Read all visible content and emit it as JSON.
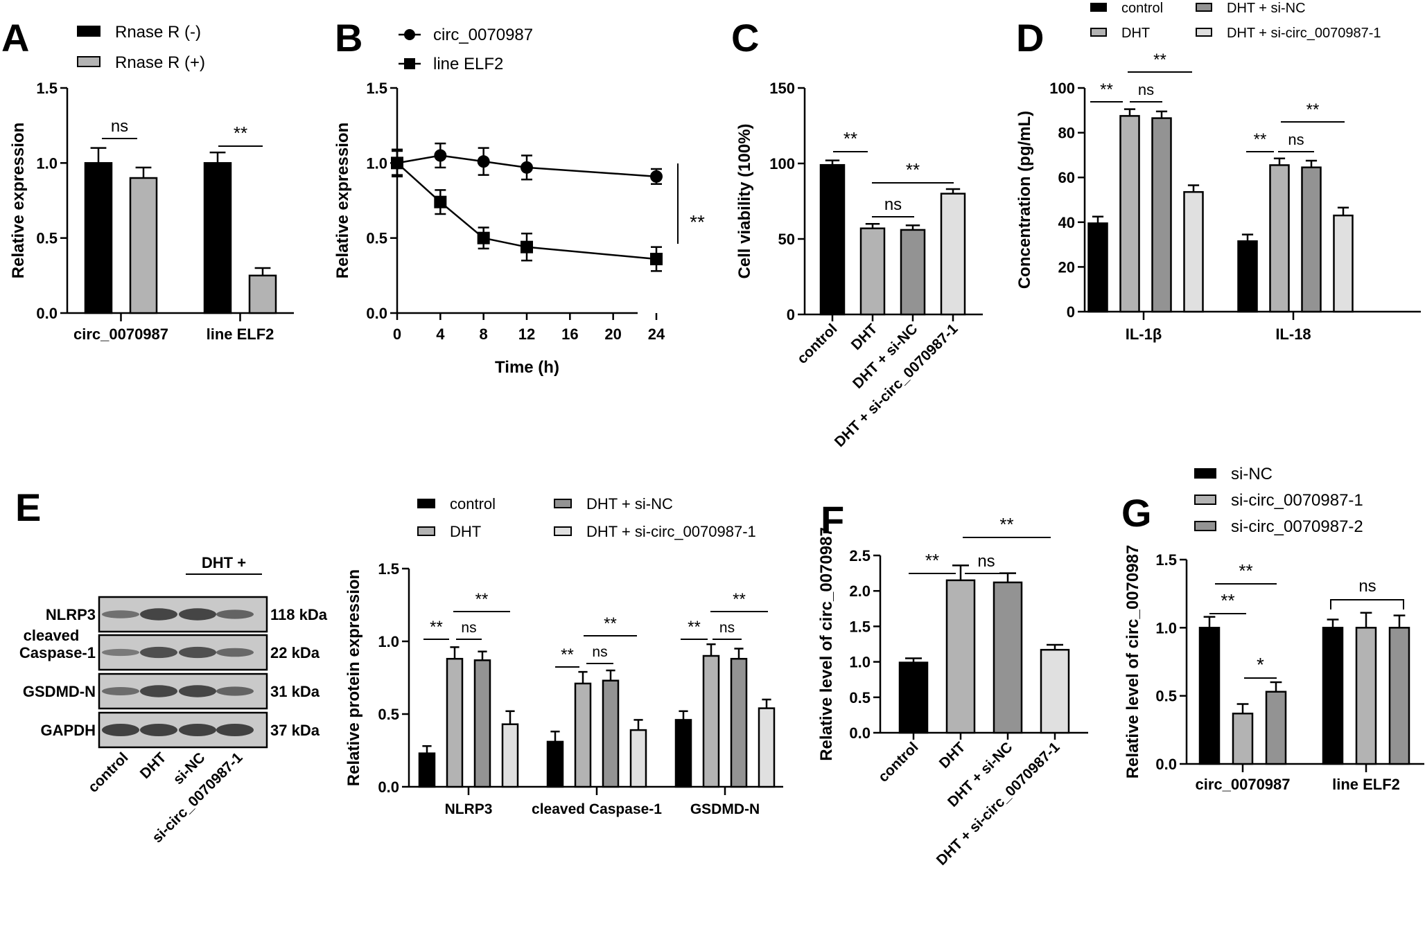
{
  "colors": {
    "control": "#000000",
    "dht": "#b3b3b3",
    "dht_sinc": "#939393",
    "dht_si1": "#e0e0e0",
    "blot_bg": "#c9c9c9",
    "band": "#3a3a3a"
  },
  "chart_data": [
    {
      "id": "A",
      "panel_label": "A",
      "type": "bar",
      "legend": [
        "Rnase R (-)",
        "Rnase R (+)"
      ],
      "categories": [
        "circ_0070987",
        "line ELF2"
      ],
      "series": [
        {
          "name": "Rnase R (-)",
          "values": [
            1.0,
            1.0
          ],
          "errors": [
            0.1,
            0.07
          ]
        },
        {
          "name": "Rnase R (+)",
          "values": [
            0.9,
            0.25
          ],
          "errors": [
            0.07,
            0.05
          ]
        }
      ],
      "ylabel": "Relative expression",
      "ylim": [
        0,
        1.5
      ],
      "yticks": [
        "0.0",
        "0.5",
        "1.0",
        "1.5"
      ],
      "annotations": [
        "ns",
        "**"
      ]
    },
    {
      "id": "B",
      "panel_label": "B",
      "type": "line",
      "legend": [
        "circ_0070987",
        "line ELF2"
      ],
      "x": [
        0,
        4,
        8,
        12,
        24
      ],
      "series": [
        {
          "name": "circ_0070987",
          "values": [
            1.0,
            1.05,
            1.01,
            0.97,
            0.91
          ],
          "errors": [
            0.09,
            0.08,
            0.09,
            0.08,
            0.05
          ]
        },
        {
          "name": "line ELF2",
          "values": [
            1.0,
            0.74,
            0.5,
            0.44,
            0.36
          ],
          "errors": [
            0.08,
            0.08,
            0.07,
            0.09,
            0.08
          ]
        }
      ],
      "xlabel": "Time (h)",
      "ylabel": "Relative expression",
      "ylim": [
        0,
        1.5
      ],
      "xlim": [
        0,
        24
      ],
      "xticks": [
        "0",
        "4",
        "8",
        "12",
        "16",
        "20",
        "24"
      ],
      "yticks": [
        "0.0",
        "0.5",
        "1.0",
        "1.5"
      ],
      "annotations": [
        "**"
      ]
    },
    {
      "id": "C",
      "panel_label": "C",
      "type": "bar",
      "categories": [
        "control",
        "DHT",
        "DHT + si-NC",
        "DHT + si-circ_0070987-1"
      ],
      "values": [
        99,
        57,
        56,
        80
      ],
      "errors": [
        3,
        3,
        3,
        3
      ],
      "ylabel": "Cell viability (100%)",
      "ylim": [
        0,
        150
      ],
      "yticks": [
        "0",
        "50",
        "100",
        "150"
      ],
      "annotations": [
        "**",
        "ns",
        "**"
      ]
    },
    {
      "id": "D",
      "panel_label": "D",
      "type": "bar",
      "legend": [
        "control",
        "DHT",
        "DHT + si-NC",
        "DHT + si-circ_0070987-1"
      ],
      "categories": [
        "IL-1β",
        "IL-18"
      ],
      "series": [
        {
          "name": "control",
          "values": [
            39.5,
            31.5
          ],
          "errors": [
            3,
            3
          ]
        },
        {
          "name": "DHT",
          "values": [
            87.5,
            65.5
          ],
          "errors": [
            3,
            3
          ]
        },
        {
          "name": "DHT + si-NC",
          "values": [
            86.5,
            64.5
          ],
          "errors": [
            3,
            3
          ]
        },
        {
          "name": "DHT + si-circ_0070987-1",
          "values": [
            53.5,
            43
          ],
          "errors": [
            3,
            3.5
          ]
        }
      ],
      "ylabel": "Concentration (pg/mL)",
      "ylim": [
        0,
        100
      ],
      "yticks": [
        "0",
        "20",
        "40",
        "60",
        "80",
        "100"
      ],
      "annotations": [
        "**",
        "ns",
        "**",
        "**",
        "ns",
        "**"
      ]
    },
    {
      "id": "E",
      "panel_label": "E",
      "type": "bar",
      "legend": [
        "control",
        "DHT",
        "DHT + si-NC",
        "DHT + si-circ_0070987-1"
      ],
      "categories": [
        "NLRP3",
        "cleaved Caspase-1",
        "GSDMD-N"
      ],
      "series": [
        {
          "name": "control",
          "values": [
            0.23,
            0.31,
            0.46
          ],
          "errors": [
            0.05,
            0.07,
            0.06
          ]
        },
        {
          "name": "DHT",
          "values": [
            0.88,
            0.71,
            0.9
          ],
          "errors": [
            0.08,
            0.08,
            0.08
          ]
        },
        {
          "name": "DHT + si-NC",
          "values": [
            0.87,
            0.73,
            0.88
          ],
          "errors": [
            0.06,
            0.07,
            0.07
          ]
        },
        {
          "name": "DHT + si-circ_0070987-1",
          "values": [
            0.43,
            0.39,
            0.54
          ],
          "errors": [
            0.09,
            0.07,
            0.06
          ]
        }
      ],
      "ylabel": "Relative protein expression",
      "ylim": [
        0,
        1.5
      ],
      "yticks": [
        "0.0",
        "0.5",
        "1.0",
        "1.5"
      ],
      "annotations": [
        "**",
        "ns",
        "**",
        "**",
        "ns",
        "**",
        "**",
        "ns",
        "**"
      ]
    },
    {
      "id": "F",
      "panel_label": "F",
      "type": "bar",
      "categories": [
        "control",
        "DHT",
        "DHT + si-NC",
        "DHT + si-circ_0070987-1"
      ],
      "values": [
        0.99,
        2.15,
        2.12,
        1.17
      ],
      "errors": [
        0.06,
        0.21,
        0.13,
        0.07
      ],
      "ylabel": "Relative level of circ_0070987",
      "ylim": [
        0,
        2.5
      ],
      "yticks": [
        "0.0",
        "0.5",
        "1.0",
        "1.5",
        "2.0",
        "2.5"
      ],
      "annotations": [
        "**",
        "ns",
        "**"
      ]
    },
    {
      "id": "G",
      "panel_label": "G",
      "type": "bar",
      "legend": [
        "si-NC",
        "si-circ_0070987-1",
        "si-circ_0070987-2"
      ],
      "categories": [
        "circ_0070987",
        "line ELF2"
      ],
      "series": [
        {
          "name": "si-NC",
          "values": [
            1.0,
            1.0
          ],
          "errors": [
            0.08,
            0.06
          ]
        },
        {
          "name": "si-circ_0070987-1",
          "values": [
            0.37,
            1.0
          ],
          "errors": [
            0.07,
            0.11
          ]
        },
        {
          "name": "si-circ_0070987-2",
          "values": [
            0.53,
            1.0
          ],
          "errors": [
            0.07,
            0.09
          ]
        }
      ],
      "ylabel": "Relative level of circ_0070987",
      "ylim": [
        0,
        1.5
      ],
      "yticks": [
        "0.0",
        "0.5",
        "1.0",
        "1.5"
      ],
      "annotations": [
        "**",
        "**",
        "*",
        "ns"
      ]
    }
  ],
  "blot": {
    "panel_label": "E",
    "header": "DHT +",
    "rows": [
      {
        "label": "NLRP3",
        "kda": "118 kDa",
        "intensity": [
          0.45,
          0.95,
          0.95,
          0.6
        ]
      },
      {
        "label_line1": "cleaved",
        "label_line2": "Caspase-1",
        "kda": "22 kDa",
        "intensity": [
          0.35,
          0.85,
          0.85,
          0.55
        ]
      },
      {
        "label": "GSDMD-N",
        "kda": "31 kDa",
        "intensity": [
          0.5,
          0.95,
          0.95,
          0.6
        ]
      },
      {
        "label": "GAPDH",
        "kda": "37 kDa",
        "intensity": [
          1,
          1,
          1,
          1
        ]
      }
    ],
    "lanes": [
      "control",
      "DHT",
      "si-NC",
      "si-circ_0070987-1"
    ]
  }
}
